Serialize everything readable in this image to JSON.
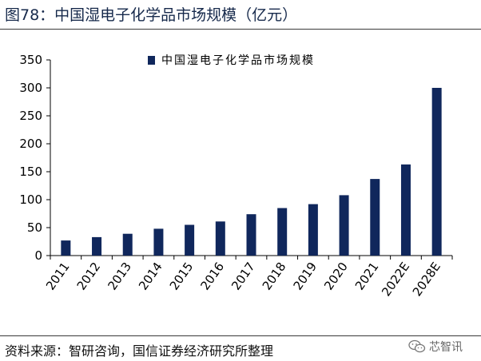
{
  "figure": {
    "title": "图78：中国湿电子化学品市场规模（亿元）",
    "source": "资料来源：智研咨询，国信证券经济研究所整理",
    "watermark": "芯智讯"
  },
  "chart_data": {
    "type": "bar",
    "categories": [
      "2011",
      "2012",
      "2013",
      "2014",
      "2015",
      "2016",
      "2017",
      "2018",
      "2019",
      "2020",
      "2021",
      "2022E",
      "2028E"
    ],
    "series": [
      {
        "name": "中国湿电子化学品市场规模",
        "values": [
          27,
          33,
          39,
          48,
          55,
          61,
          74,
          85,
          92,
          108,
          137,
          163,
          300
        ]
      }
    ],
    "ylim": [
      0,
      350
    ],
    "yticks": [
      0,
      50,
      100,
      150,
      200,
      250,
      300,
      350
    ],
    "xlabel": "",
    "ylabel": "",
    "grid": false,
    "legend_position": "top-center",
    "bar_color": "#10275c"
  }
}
